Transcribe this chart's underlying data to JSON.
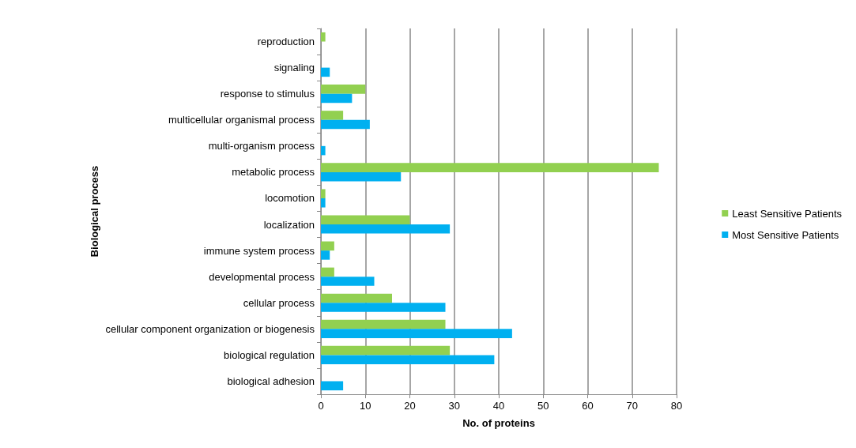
{
  "chart_data": {
    "type": "bar",
    "orientation": "horizontal",
    "categories": [
      "reproduction",
      "signaling",
      "response to stimulus",
      "multicellular organismal process",
      "multi-organism process",
      "metabolic process",
      "locomotion",
      "localization",
      "immune system process",
      "developmental process",
      "cellular process",
      "cellular component organization or biogenesis",
      "biological regulation",
      "biological adhesion"
    ],
    "series": [
      {
        "name": "Least Sensitive Patients",
        "color": "#92d050",
        "values": [
          1,
          null,
          10,
          5,
          null,
          76,
          1,
          20,
          3,
          3,
          16,
          28,
          29,
          null
        ]
      },
      {
        "name": "Most Sensitive Patients",
        "color": "#00b0f0",
        "values": [
          null,
          2,
          7,
          11,
          1,
          18,
          1,
          29,
          2,
          12,
          28,
          43,
          39,
          5
        ]
      }
    ],
    "xlabel": "No. of proteins",
    "ylabel": "Biological process",
    "xlim": [
      0,
      80
    ],
    "xticks": [
      0,
      10,
      20,
      30,
      40,
      50,
      60,
      70,
      80
    ],
    "grid": "x",
    "legend": "right"
  }
}
